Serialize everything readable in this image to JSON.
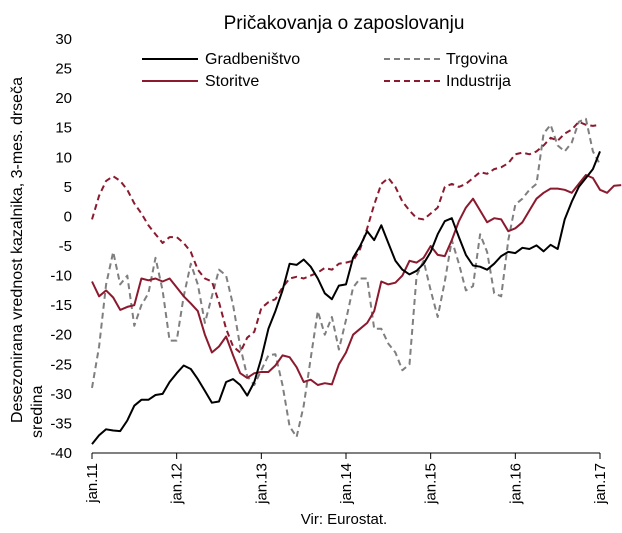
{
  "chart_data": {
    "type": "line",
    "title": "Pričakovanja o zaposlovanju",
    "ylabel_lines": [
      "Desezonirana vrednost kazalnika, 3-mes. drseča",
      "sredina"
    ],
    "source": "Vir: Eurostat.",
    "ylim": [
      -40,
      30
    ],
    "y_ticks": [
      30,
      25,
      20,
      15,
      10,
      5,
      0,
      -5,
      -10,
      -15,
      -20,
      -25,
      -30,
      -35,
      -40
    ],
    "x_tick_labels": [
      "jan.11",
      "jan.12",
      "jan.13",
      "jan.14",
      "jan.15",
      "jan.16",
      "jan.17"
    ],
    "x_tick_months": [
      0,
      12,
      24,
      36,
      48,
      60,
      72
    ],
    "grid": false,
    "legend_position": "top",
    "series": [
      {
        "name": "Gradbeništvo",
        "color": "#000000",
        "dash": "solid",
        "values": [
          -38.5,
          -37,
          -36,
          -36.2,
          -36.3,
          -34.5,
          -32,
          -31,
          -31,
          -30.2,
          -30,
          -28,
          -26.5,
          -25.2,
          -25.8,
          -27.5,
          -29.5,
          -31.5,
          -31.3,
          -28,
          -27.5,
          -28.5,
          -30.3,
          -28,
          -24,
          -19,
          -16,
          -12.5,
          -8,
          -8.2,
          -7.3,
          -8.5,
          -10.5,
          -13,
          -14,
          -11.7,
          -11.5,
          -7,
          -5,
          -2.5,
          -4,
          -1.5,
          -4.5,
          -7.5,
          -9,
          -9.8,
          -9.2,
          -8,
          -6,
          -3,
          -0.8,
          -0.3,
          -3.5,
          -6.5,
          -8.3,
          -8.5,
          -9,
          -8,
          -6.7,
          -6,
          -6.2,
          -5.3,
          -5.5,
          -4.9,
          -5.9,
          -4.8,
          -5.5,
          -0.5,
          2.5,
          5,
          6.5,
          8,
          11
        ]
      },
      {
        "name": "Storitve",
        "color": "#8b1a2e",
        "dash": "solid",
        "values": [
          -11,
          -13.5,
          -12.5,
          -13.7,
          -15.8,
          -15.3,
          -15,
          -10.5,
          -10.8,
          -10.5,
          -11,
          -10.5,
          -12,
          -13.5,
          -14.7,
          -16,
          -20,
          -23,
          -22,
          -20.3,
          -23.5,
          -26.5,
          -27.3,
          -26.5,
          -26.3,
          -26.3,
          -25.2,
          -23.5,
          -23.8,
          -25.5,
          -28,
          -27.6,
          -28.5,
          -28.2,
          -28.4,
          -25,
          -23,
          -20,
          -19,
          -18,
          -16,
          -11,
          -11.5,
          -11.2,
          -10,
          -7.5,
          -7.8,
          -7,
          -5,
          -6.5,
          -6.7,
          -4,
          -0.8,
          1.5,
          3,
          1,
          -1,
          -0.3,
          -0.5,
          -2.5,
          -2,
          -1,
          1,
          3,
          4,
          4.7,
          4.7,
          4.5,
          4,
          5.5,
          7,
          6.5,
          4.5,
          4,
          5.2,
          5.3
        ]
      },
      {
        "name": "Trgovina",
        "color": "#7f7f7f",
        "dash": "6,4",
        "values": [
          -29,
          -22,
          -11.5,
          -6,
          -11.5,
          -10,
          -18.5,
          -15,
          -13,
          -7,
          -12.5,
          -21,
          -21,
          -13.5,
          -8,
          -11.5,
          -18,
          -13.5,
          -9,
          -10,
          -15,
          -22,
          -27,
          -28.5,
          -26,
          -23.5,
          -23.3,
          -28.5,
          -35.5,
          -37.3,
          -32,
          -24,
          -16,
          -20,
          -17,
          -22.5,
          -17.5,
          -12,
          -10.5,
          -10.5,
          -19,
          -19,
          -21.5,
          -23,
          -26,
          -25,
          -10,
          -7.5,
          -12.5,
          -17,
          -11,
          -4,
          -8,
          -12.5,
          -11.8,
          -3,
          -6,
          -13,
          -13.5,
          -4,
          2,
          3,
          4.5,
          5.5,
          14,
          15.5,
          12,
          11,
          12.5,
          16,
          16.5,
          11,
          8.8
        ]
      },
      {
        "name": "Industrija",
        "color": "#8b1a2e",
        "dash": "6,4",
        "values": [
          -0.5,
          3.5,
          6,
          6.8,
          6,
          4.5,
          2.2,
          0.5,
          -1.5,
          -3,
          -4.5,
          -3.5,
          -3.5,
          -4.5,
          -6,
          -9,
          -10.5,
          -11,
          -14.5,
          -19,
          -22,
          -23,
          -20.5,
          -19.5,
          -15.5,
          -14.5,
          -14,
          -12,
          -10.5,
          -10.2,
          -10.5,
          -10,
          -9.5,
          -8.7,
          -9,
          -8,
          -7.8,
          -7.5,
          -5.5,
          -2,
          2,
          5.5,
          6.5,
          5,
          2.5,
          1,
          -0.3,
          -0.5,
          0.5,
          1.5,
          5,
          5.5,
          5,
          5.5,
          6.5,
          7.5,
          7.2,
          8,
          8.3,
          9,
          10.5,
          10.8,
          10.5,
          11,
          12,
          13.3,
          12.8,
          14,
          14.7,
          16,
          15.5,
          15.3,
          15.5
        ]
      }
    ]
  }
}
